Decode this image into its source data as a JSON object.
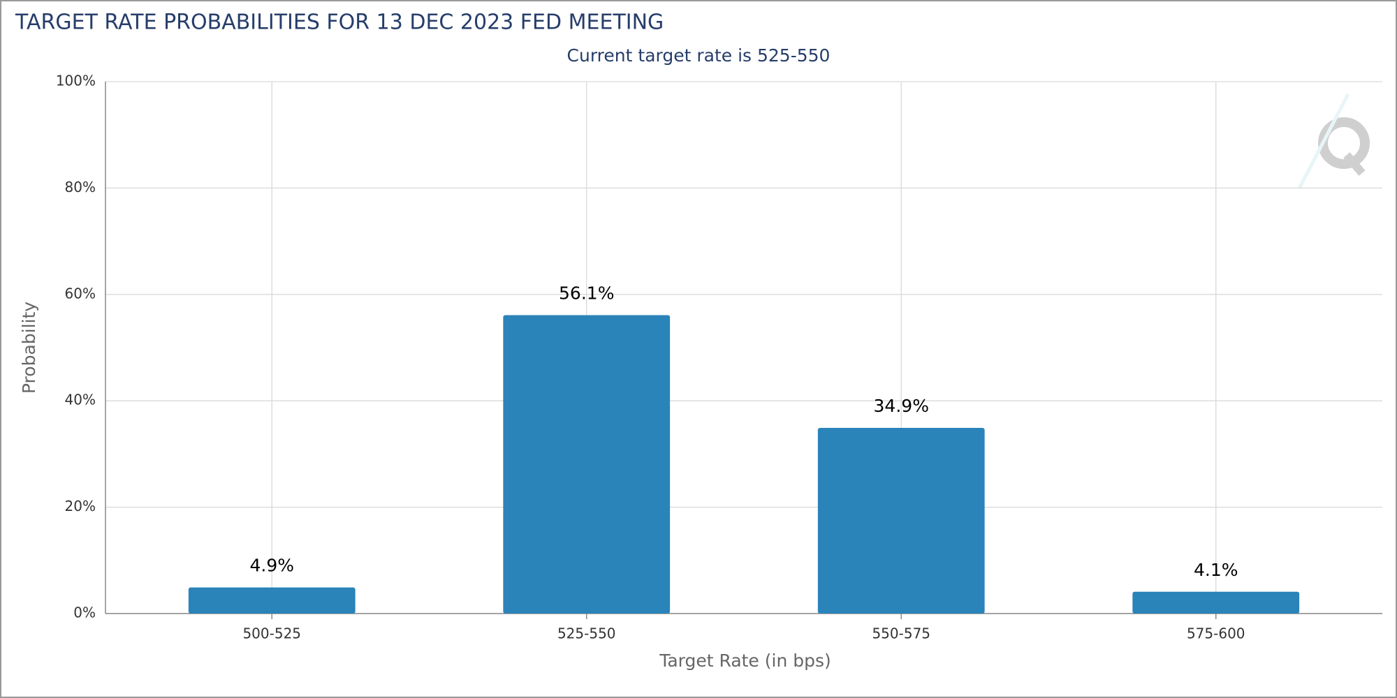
{
  "chart_data": {
    "type": "bar",
    "title": "TARGET RATE PROBABILITIES FOR 13 DEC 2023 FED MEETING",
    "subtitle": "Current target rate is 525-550",
    "x_label": "Target Rate (in bps)",
    "y_label": "Probability",
    "categories": [
      "500-525",
      "525-550",
      "550-575",
      "575-600"
    ],
    "values": [
      4.9,
      56.1,
      34.9,
      4.1
    ],
    "value_labels": [
      "4.9%",
      "56.1%",
      "34.9%",
      "4.1%"
    ],
    "color": "#2a83b9",
    "ylim": [
      0,
      100
    ],
    "yticks": [
      {
        "value": 0,
        "label": "0%"
      },
      {
        "value": 20,
        "label": "20%"
      },
      {
        "value": 40,
        "label": "40%"
      },
      {
        "value": 60,
        "label": "60%"
      },
      {
        "value": 80,
        "label": "80%"
      },
      {
        "value": 100,
        "label": "100%"
      }
    ],
    "grid": true
  }
}
